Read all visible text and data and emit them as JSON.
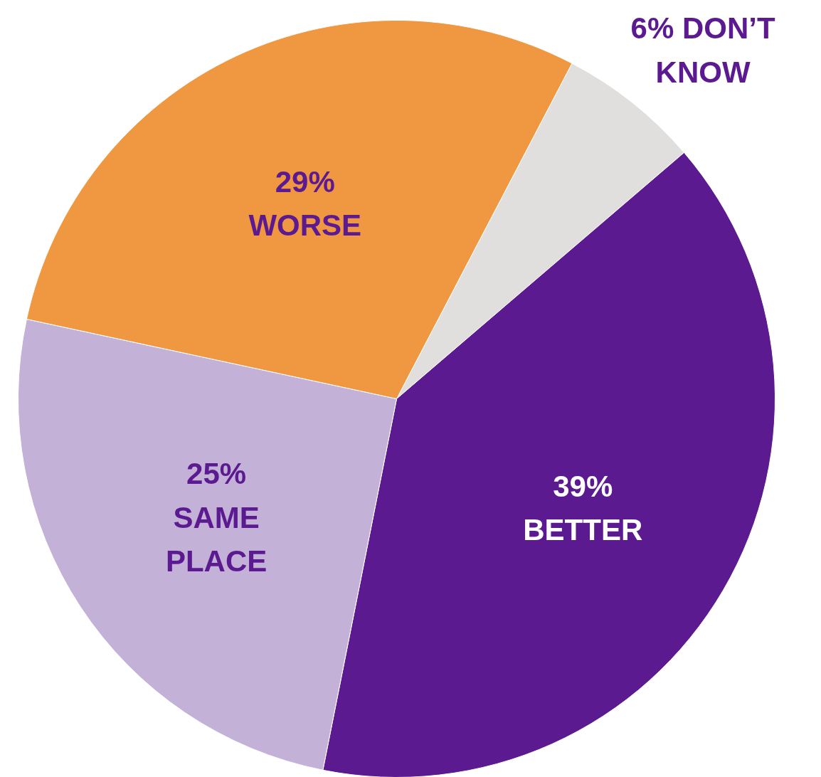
{
  "chart_data": {
    "type": "pie",
    "categories": [
      "DON’T KNOW",
      "BETTER",
      "SAME PLACE",
      "WORSE"
    ],
    "values": [
      6,
      39,
      25,
      29
    ],
    "colors": [
      "#e0dfdd",
      "#5c1a91",
      "#c4b1d7",
      "#f09841"
    ],
    "value_labels": [
      "6%",
      "39%",
      "25%",
      "29%"
    ]
  }
}
